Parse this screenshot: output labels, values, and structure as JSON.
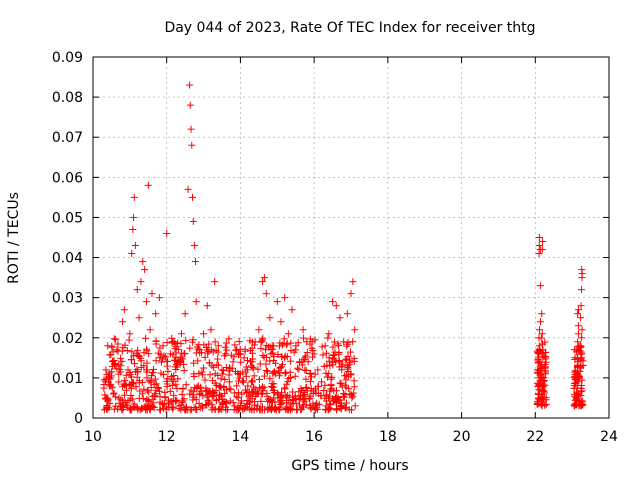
{
  "chart_data": {
    "type": "scatter",
    "title": "Day 044 of 2023, Rate Of TEC Index for receiver thtg",
    "xlabel": "GPS time / hours",
    "ylabel": "ROTI / TECUs",
    "xlim": [
      10,
      24
    ],
    "ylim": [
      0,
      0.09
    ],
    "x_ticks": [
      10,
      12,
      14,
      16,
      18,
      20,
      22,
      24
    ],
    "x_tick_labels": [
      "10",
      "12",
      "14",
      "16",
      "18",
      "20",
      "22",
      "24"
    ],
    "y_ticks": [
      0,
      0.01,
      0.02,
      0.03,
      0.04,
      0.05,
      0.06,
      0.07,
      0.08,
      0.09
    ],
    "y_tick_labels": [
      "0",
      "0.01",
      "0.02",
      "0.03",
      "0.04",
      "0.05",
      "0.06",
      "0.07",
      "0.08",
      "0.09"
    ],
    "grid": true,
    "marker": "+",
    "color": "#ff0000",
    "series": [
      {
        "points": [
          [
            10.3,
            0.0095
          ],
          [
            10.35,
            0.012
          ],
          [
            10.4,
            0.018
          ],
          [
            10.45,
            0.008
          ],
          [
            10.5,
            0.0105
          ],
          [
            10.55,
            0.006
          ],
          [
            10.6,
            0.013
          ],
          [
            10.65,
            0.017
          ],
          [
            10.7,
            0.009
          ],
          [
            10.75,
            0.0115
          ],
          [
            10.8,
            0.024
          ],
          [
            10.85,
            0.027
          ],
          [
            10.9,
            0.008
          ],
          [
            10.95,
            0.012
          ],
          [
            11.0,
            0.021
          ],
          [
            11.05,
            0.041
          ],
          [
            11.08,
            0.047
          ],
          [
            11.1,
            0.05
          ],
          [
            11.12,
            0.055
          ],
          [
            11.15,
            0.043
          ],
          [
            11.2,
            0.032
          ],
          [
            11.25,
            0.025
          ],
          [
            11.3,
            0.034
          ],
          [
            11.35,
            0.039
          ],
          [
            11.4,
            0.037
          ],
          [
            11.45,
            0.029
          ],
          [
            11.5,
            0.058
          ],
          [
            11.55,
            0.022
          ],
          [
            11.6,
            0.031
          ],
          [
            11.7,
            0.026
          ],
          [
            11.8,
            0.03
          ],
          [
            11.9,
            0.018
          ],
          [
            12.0,
            0.046
          ],
          [
            12.1,
            0.016
          ],
          [
            12.2,
            0.019
          ],
          [
            12.3,
            0.014
          ],
          [
            12.4,
            0.021
          ],
          [
            12.5,
            0.026
          ],
          [
            12.58,
            0.057
          ],
          [
            12.62,
            0.083
          ],
          [
            12.64,
            0.078
          ],
          [
            12.66,
            0.072
          ],
          [
            12.68,
            0.068
          ],
          [
            12.7,
            0.055
          ],
          [
            12.72,
            0.049
          ],
          [
            12.75,
            0.043
          ],
          [
            12.78,
            0.039
          ],
          [
            12.8,
            0.029
          ],
          [
            12.9,
            0.017
          ],
          [
            13.0,
            0.021
          ],
          [
            13.1,
            0.028
          ],
          [
            13.2,
            0.022
          ],
          [
            13.3,
            0.034
          ],
          [
            13.4,
            0.018
          ],
          [
            13.5,
            0.012
          ],
          [
            13.6,
            0.016
          ],
          [
            13.7,
            0.009
          ],
          [
            13.8,
            0.014
          ],
          [
            13.9,
            0.017
          ],
          [
            14.0,
            0.011
          ],
          [
            14.1,
            0.015
          ],
          [
            14.2,
            0.008
          ],
          [
            14.3,
            0.013
          ],
          [
            14.4,
            0.019
          ],
          [
            14.5,
            0.022
          ],
          [
            14.6,
            0.034
          ],
          [
            14.65,
            0.035
          ],
          [
            14.7,
            0.031
          ],
          [
            14.8,
            0.025
          ],
          [
            14.9,
            0.018
          ],
          [
            15.0,
            0.029
          ],
          [
            15.1,
            0.024
          ],
          [
            15.2,
            0.03
          ],
          [
            15.3,
            0.021
          ],
          [
            15.4,
            0.027
          ],
          [
            15.5,
            0.017
          ],
          [
            15.6,
            0.014
          ],
          [
            15.7,
            0.022
          ],
          [
            15.8,
            0.019
          ],
          [
            15.9,
            0.011
          ],
          [
            16.0,
            0.016
          ],
          [
            16.1,
            0.012
          ],
          [
            16.2,
            0.009
          ],
          [
            16.3,
            0.018
          ],
          [
            16.4,
            0.021
          ],
          [
            16.5,
            0.029
          ],
          [
            16.6,
            0.028
          ],
          [
            16.7,
            0.025
          ],
          [
            16.8,
            0.019
          ],
          [
            16.9,
            0.026
          ],
          [
            17.0,
            0.031
          ],
          [
            17.05,
            0.034
          ],
          [
            17.1,
            0.022
          ]
        ]
      }
    ]
  }
}
